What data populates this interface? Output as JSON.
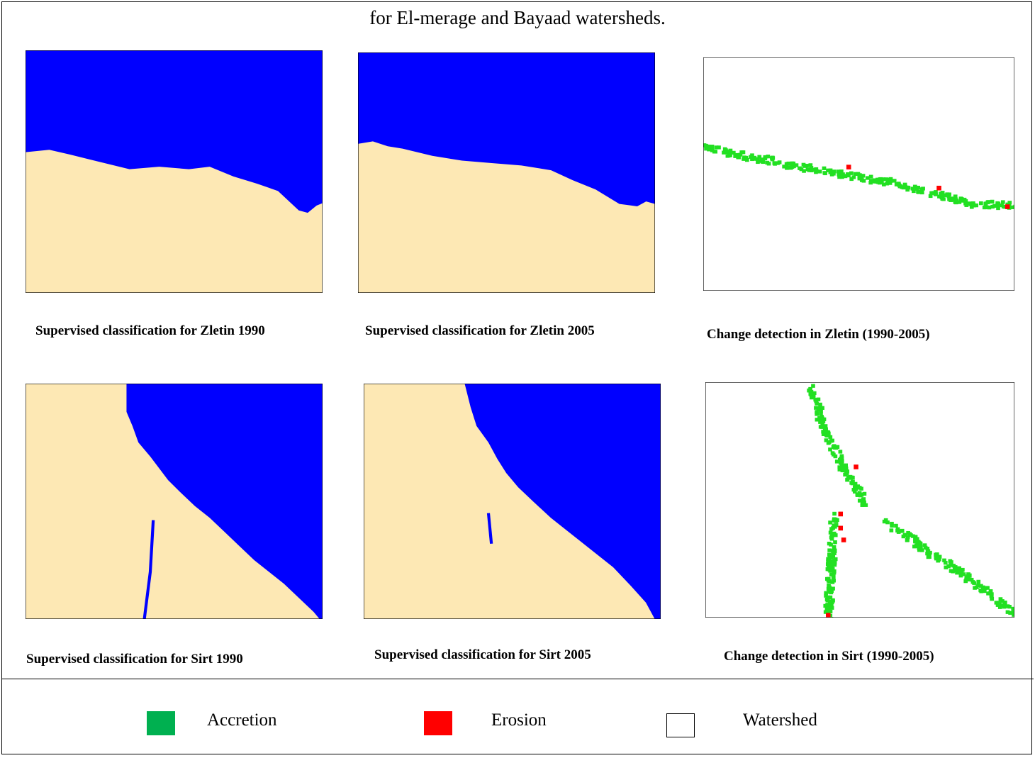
{
  "title": "for El-merage and Bayaad watersheds.",
  "panels": [
    {
      "caption": "Supervised classification for Zletin 1990"
    },
    {
      "caption": "Supervised classification for Zletin 2005"
    },
    {
      "caption": "Change detection in Zletin (1990-2005)"
    },
    {
      "caption": "Supervised classification for Sirt 1990"
    },
    {
      "caption": "Supervised classification for Sirt 2005"
    },
    {
      "caption": "Change detection in Sirt (1990-2005)"
    }
  ],
  "legend": [
    {
      "label": "Accretion",
      "color": "#00b050"
    },
    {
      "label": "Erosion",
      "color": "#ff0000"
    },
    {
      "label": "Watershed",
      "color": "#ffffff"
    }
  ]
}
